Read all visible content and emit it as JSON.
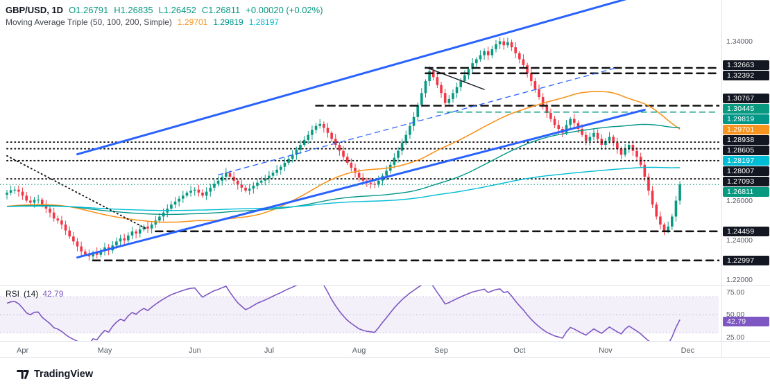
{
  "header": {
    "title": "GBP/USD, 1D",
    "symbol": "GBP/USD",
    "interval": "1D",
    "ohlc": {
      "o": "O1.26791",
      "h": "H1.26835",
      "l": "L1.26452",
      "c": "C1.26811"
    },
    "change": "+0.00020 (+0.02%)",
    "indicator": {
      "name": "Moving Average Triple (50, 100, 200, Simple)",
      "v50": "1.29701",
      "v100": "1.29819",
      "v200": "1.28197"
    }
  },
  "rsi_legend": {
    "title": "RSI",
    "params": "(14)",
    "value": "42.79"
  },
  "footer": {
    "brand": "TradingView"
  },
  "colors": {
    "up": "#089981",
    "down": "#f23645",
    "ma50": "#f7941e",
    "ma100": "#009688",
    "ma200": "#00bcd4",
    "rsi": "#7e57c2",
    "trend_blue": "#2962ff",
    "badge_dark": "#131722"
  },
  "price_axis": {
    "plain": [
      {
        "label": "1.34000",
        "price": 1.34
      },
      {
        "label": "1.26000",
        "price": 1.26
      },
      {
        "label": "1.24000",
        "price": 1.24
      },
      {
        "label": "1.22000",
        "price": 1.22
      }
    ],
    "badges": [
      {
        "label": "1.32663",
        "price": 1.32663,
        "bg": "#131722"
      },
      {
        "label": "1.32392",
        "price": 1.32392,
        "bg": "#131722"
      },
      {
        "label": "1.30767",
        "price": 1.30767,
        "bg": "#131722"
      },
      {
        "label": "1.30445",
        "price": 1.30445,
        "bg": "#089981"
      },
      {
        "label": "1.29819",
        "price": 1.29819,
        "bg": "#009688"
      },
      {
        "label": "1.29701",
        "price": 1.29701,
        "bg": "#f7941e"
      },
      {
        "label": "1.28938",
        "price": 1.28938,
        "bg": "#131722"
      },
      {
        "label": "1.28605",
        "price": 1.28605,
        "bg": "#131722"
      },
      {
        "label": "1.28197",
        "price": 1.28197,
        "bg": "#00bcd4"
      },
      {
        "label": "1.28007",
        "price": 1.28007,
        "bg": "#131722"
      },
      {
        "label": "1.27093",
        "price": 1.27093,
        "bg": "#131722"
      },
      {
        "label": "1.26811",
        "price": 1.26811,
        "bg": "#089981"
      },
      {
        "label": "1.24459",
        "price": 1.24459,
        "bg": "#131722"
      },
      {
        "label": "1.22997",
        "price": 1.22997,
        "bg": "#131722"
      }
    ]
  },
  "rsi_axis": {
    "plain": [
      {
        "label": "75.00",
        "v": 75
      },
      {
        "label": "50.00",
        "v": 50
      },
      {
        "label": "25.00",
        "v": 25
      }
    ],
    "badge": {
      "label": "42.79",
      "v": 42.79,
      "bg": "#7e57c2"
    }
  },
  "chart_data": {
    "type": "candlestick",
    "symbol": "GBP/USD",
    "interval": "1D",
    "title": "GBP/USD daily with Moving Average Triple (50,100,200) and RSI(14)",
    "y_axis": {
      "visible_range": [
        1.218,
        1.356
      ]
    },
    "months": [
      {
        "label": "Apr",
        "i": 4
      },
      {
        "label": "May",
        "i": 25
      },
      {
        "label": "Jun",
        "i": 48
      },
      {
        "label": "Jul",
        "i": 67
      },
      {
        "label": "Aug",
        "i": 90
      },
      {
        "label": "Sep",
        "i": 111
      },
      {
        "label": "Oct",
        "i": 131
      },
      {
        "label": "Nov",
        "i": 153
      },
      {
        "label": "Dec",
        "i": 174
      }
    ],
    "first_open": 1.263,
    "history_seed": 1.257,
    "last_price": 1.26811,
    "closes": [
      1.264,
      1.2652,
      1.2655,
      1.2645,
      1.2625,
      1.26,
      1.259,
      1.2604,
      1.2605,
      1.2578,
      1.256,
      1.254,
      1.251,
      1.25,
      1.248,
      1.245,
      1.242,
      1.2395,
      1.237,
      1.2345,
      1.233,
      1.232,
      1.234,
      1.2328,
      1.2348,
      1.2365,
      1.235,
      1.2375,
      1.2395,
      1.241,
      1.24,
      1.2425,
      1.2445,
      1.2435,
      1.2455,
      1.247,
      1.246,
      1.248,
      1.25,
      1.252,
      1.254,
      1.256,
      1.258,
      1.2595,
      1.261,
      1.2625,
      1.264,
      1.265,
      1.2655,
      1.264,
      1.2625,
      1.2645,
      1.2665,
      1.2685,
      1.27,
      1.272,
      1.274,
      1.272,
      1.27,
      1.268,
      1.2665,
      1.265,
      1.266,
      1.2675,
      1.269,
      1.27,
      1.2712,
      1.2725,
      1.274,
      1.2755,
      1.277,
      1.279,
      1.281,
      1.283,
      1.2855,
      1.288,
      1.2905,
      1.293,
      1.2955,
      1.2975,
      1.2985,
      1.2965,
      1.294,
      1.291,
      1.288,
      1.285,
      1.282,
      1.279,
      1.2765,
      1.274,
      1.2715,
      1.27,
      1.269,
      1.2685,
      1.268,
      1.27,
      1.2725,
      1.275,
      1.278,
      1.2815,
      1.285,
      1.289,
      1.293,
      1.2975,
      1.302,
      1.308,
      1.314,
      1.32,
      1.325,
      1.322,
      1.318,
      1.314,
      1.309,
      1.311,
      1.314,
      1.317,
      1.32,
      1.323,
      1.326,
      1.329,
      1.331,
      1.333,
      1.335,
      1.333,
      1.336,
      1.3385,
      1.34,
      1.338,
      1.3395,
      1.337,
      1.334,
      1.331,
      1.328,
      1.324,
      1.32,
      1.316,
      1.312,
      1.308,
      1.304,
      1.301,
      1.298,
      1.296,
      1.294,
      1.298,
      1.301,
      1.299,
      1.296,
      1.293,
      1.29,
      1.292,
      1.294,
      1.291,
      1.288,
      1.29,
      1.292,
      1.289,
      1.286,
      1.283,
      1.286,
      1.288,
      1.285,
      1.282,
      1.278,
      1.272,
      1.265,
      1.258,
      1.252,
      1.248,
      1.245,
      1.247,
      1.252,
      1.26,
      1.2681
    ],
    "moving_averages": [
      {
        "period": 50,
        "value": 1.29701,
        "color": "#f7941e"
      },
      {
        "period": 100,
        "value": 1.29819,
        "color": "#009688"
      },
      {
        "period": 200,
        "value": 1.28197,
        "color": "#00bcd4"
      }
    ],
    "levels": [
      {
        "price": 1.32663,
        "style": "dashed",
        "color": "#111111",
        "from": 107
      },
      {
        "price": 1.32392,
        "style": "dashed",
        "color": "#111111",
        "from": 107
      },
      {
        "price": 1.30767,
        "style": "dashed",
        "color": "#111111",
        "from": 79
      },
      {
        "price": 1.30445,
        "style": "dashed_thin",
        "color": "#089981",
        "from": 110
      },
      {
        "price": 1.28938,
        "style": "dotted",
        "color": "#111111",
        "from": 0
      },
      {
        "price": 1.28605,
        "style": "dotted",
        "color": "#111111",
        "from": 0
      },
      {
        "price": 1.28007,
        "style": "dotted",
        "color": "#111111",
        "from": 0
      },
      {
        "price": 1.27093,
        "style": "dotted",
        "color": "#111111",
        "from": 0
      },
      {
        "price": 1.24459,
        "style": "dashed",
        "color": "#111111",
        "from": 38
      },
      {
        "price": 1.22997,
        "style": "dashed",
        "color": "#111111",
        "from": 22
      }
    ],
    "trendlines": [
      {
        "name": "channel-upper",
        "i1": 18,
        "p1": 1.2833,
        "i2": 159,
        "p2": 1.3616,
        "color": "#2962ff",
        "w": 3,
        "dash": ""
      },
      {
        "name": "channel-lower",
        "i1": 18,
        "p1": 1.2315,
        "i2": 163,
        "p2": 1.3056,
        "color": "#2962ff",
        "w": 3,
        "dash": ""
      },
      {
        "name": "inner-ascending-dashed",
        "i1": 54,
        "p1": 1.2729,
        "i2": 156,
        "p2": 1.3268,
        "color": "#2962ff",
        "w": 1.3,
        "dash": "7,6"
      },
      {
        "name": "descending-dotted",
        "i1": 0,
        "p1": 1.2825,
        "i2": 36,
        "p2": 1.2455,
        "color": "#111111",
        "w": 1.9,
        "dash": "1.2,4.4"
      },
      {
        "name": "annotation-pointer",
        "i1": 107,
        "p1": 1.327,
        "i2": 122,
        "p2": 1.3158,
        "color": "#131722",
        "w": 1.4,
        "dash": ""
      }
    ],
    "rsi": {
      "period": 14,
      "value": 42.79,
      "color": "#7e57c2",
      "band": [
        30,
        70
      ],
      "scale_values": [
        75,
        50,
        25
      ]
    }
  }
}
